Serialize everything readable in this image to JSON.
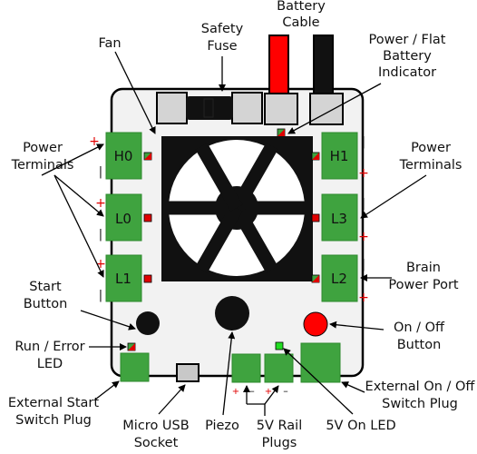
{
  "labels": {
    "fan": "Fan",
    "safety_fuse": [
      "Safety",
      "Fuse"
    ],
    "battery_cable": [
      "Battery",
      "Cable"
    ],
    "battery_indicator": [
      "Power / Flat",
      "Battery",
      "Indicator"
    ],
    "power_terminals_left": [
      "Power",
      "Terminals"
    ],
    "power_terminals_right": [
      "Power",
      "Terminals"
    ],
    "start_button": [
      "Start",
      "Button"
    ],
    "run_error_led": [
      "Run / Error",
      "LED"
    ],
    "brain_power_port": [
      "Brain",
      "Power Port"
    ],
    "on_off_button": [
      "On / Off",
      "Button"
    ],
    "external_start_plug": [
      "External Start",
      "Switch Plug"
    ],
    "micro_usb": [
      "Micro USB",
      "Socket"
    ],
    "piezo": "Piezo",
    "rail_plugs": [
      "5V Rail",
      "Plugs"
    ],
    "on_led": "5V On LED",
    "external_onoff_plug": [
      "External  On / Off",
      "Switch Plug"
    ]
  },
  "terminals": {
    "left": [
      "H0",
      "L0",
      "L1"
    ],
    "right": [
      "H1",
      "L3",
      "L2"
    ]
  },
  "polarity": {
    "plus": "+",
    "minus": "|",
    "dash": "–"
  },
  "colors": {
    "board": "#f2f2f2",
    "terminal_green": "#3fa33f",
    "cable_red": "#ff0000",
    "cable_black": "#111111",
    "fan_black": "#111111",
    "led_green": "#22dd22",
    "on_off_red": "#ff0000"
  },
  "icons": [
    "fan-icon",
    "fuse-icon",
    "led-icon",
    "button-icon",
    "piezo-icon",
    "usb-icon"
  ]
}
